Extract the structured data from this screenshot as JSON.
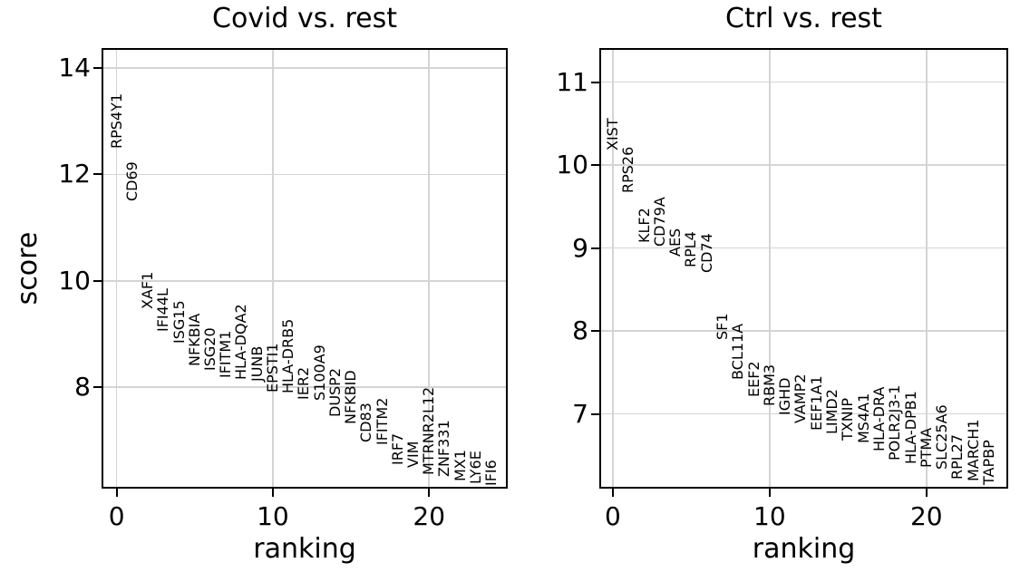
{
  "colors": {
    "background": "#ffffff",
    "text": "#000000",
    "axis_spine": "#000000",
    "grid": "#d4d4d4"
  },
  "chart_data": [
    {
      "type": "scatter",
      "point_style": "gene names drawn as vertical text labels at (ranking, score)",
      "title": "Covid vs. rest",
      "xlabel": "ranking",
      "ylabel": "score",
      "xlim": [
        -0.85,
        24.92
      ],
      "ylim": [
        6.13,
        14.34
      ],
      "xticks": [
        0,
        10,
        20
      ],
      "yticks": [
        8,
        10,
        12,
        14
      ],
      "grid": true,
      "points": [
        {
          "ranking": 0,
          "gene": "RPS4Y1",
          "score": 12.49
        },
        {
          "ranking": 1,
          "gene": "CD69",
          "score": 11.5
        },
        {
          "ranking": 2,
          "gene": "XAF1",
          "score": 9.46
        },
        {
          "ranking": 3,
          "gene": "IFI44L",
          "score": 9.05
        },
        {
          "ranking": 4,
          "gene": "ISG15",
          "score": 8.82
        },
        {
          "ranking": 5,
          "gene": "NFKBIA",
          "score": 8.4
        },
        {
          "ranking": 6,
          "gene": "ISG20",
          "score": 8.31
        },
        {
          "ranking": 7,
          "gene": "IFITM1",
          "score": 8.17
        },
        {
          "ranking": 8,
          "gene": "HLA-DQA2",
          "score": 8.14
        },
        {
          "ranking": 9,
          "gene": "JUNB",
          "score": 8.11
        },
        {
          "ranking": 10,
          "gene": "EPSTI1",
          "score": 7.9
        },
        {
          "ranking": 11,
          "gene": "HLA-DRB5",
          "score": 7.88
        },
        {
          "ranking": 12,
          "gene": "IER2",
          "score": 7.76
        },
        {
          "ranking": 13,
          "gene": "S100A9",
          "score": 7.74
        },
        {
          "ranking": 14,
          "gene": "DUSP2",
          "score": 7.44
        },
        {
          "ranking": 15,
          "gene": "NFKBID",
          "score": 7.3
        },
        {
          "ranking": 16,
          "gene": "CD83",
          "score": 6.96
        },
        {
          "ranking": 17,
          "gene": "IFITM2",
          "score": 6.91
        },
        {
          "ranking": 18,
          "gene": "IRF7",
          "score": 6.54
        },
        {
          "ranking": 19,
          "gene": "VIM",
          "score": 6.48
        },
        {
          "ranking": 20,
          "gene": "MTRNR2L12",
          "score": 6.35
        },
        {
          "ranking": 21,
          "gene": "ZNF331",
          "score": 6.31
        },
        {
          "ranking": 22,
          "gene": "MX1",
          "score": 6.23
        },
        {
          "ranking": 23,
          "gene": "LY6E",
          "score": 6.18
        },
        {
          "ranking": 24,
          "gene": "IFI6",
          "score": 6.14
        }
      ]
    },
    {
      "type": "scatter",
      "point_style": "gene names drawn as vertical text labels at (ranking, score)",
      "title": "Ctrl vs. rest",
      "xlabel": "ranking",
      "ylabel": "",
      "xlim": [
        -0.75,
        25.1
      ],
      "ylim": [
        6.12,
        11.39
      ],
      "xticks": [
        0,
        10,
        20
      ],
      "yticks": [
        7,
        8,
        9,
        10,
        11
      ],
      "grid": true,
      "points": [
        {
          "ranking": 0,
          "gene": "XIST",
          "score": 10.18
        },
        {
          "ranking": 1,
          "gene": "RPS26",
          "score": 9.66
        },
        {
          "ranking": 2,
          "gene": "KLF2",
          "score": 9.06
        },
        {
          "ranking": 3,
          "gene": "CD79A",
          "score": 9.02
        },
        {
          "ranking": 4,
          "gene": "AES",
          "score": 8.9
        },
        {
          "ranking": 5,
          "gene": "RPL4",
          "score": 8.77
        },
        {
          "ranking": 6,
          "gene": "CD74",
          "score": 8.7
        },
        {
          "ranking": 7,
          "gene": "SF1",
          "score": 7.89
        },
        {
          "ranking": 8,
          "gene": "BCL11A",
          "score": 7.41
        },
        {
          "ranking": 9,
          "gene": "EEF2",
          "score": 7.2
        },
        {
          "ranking": 10,
          "gene": "RBM3",
          "score": 7.09
        },
        {
          "ranking": 11,
          "gene": "IGHD",
          "score": 6.98
        },
        {
          "ranking": 12,
          "gene": "VAMP2",
          "score": 6.89
        },
        {
          "ranking": 13,
          "gene": "EEF1A1",
          "score": 6.8
        },
        {
          "ranking": 14,
          "gene": "LIMD2",
          "score": 6.75
        },
        {
          "ranking": 15,
          "gene": "TXNIP",
          "score": 6.68
        },
        {
          "ranking": 16,
          "gene": "MS4A1",
          "score": 6.64
        },
        {
          "ranking": 17,
          "gene": "HLA-DRA",
          "score": 6.55
        },
        {
          "ranking": 18,
          "gene": "POLR2J3-1",
          "score": 6.44
        },
        {
          "ranking": 19,
          "gene": "HLA-DPB1",
          "score": 6.39
        },
        {
          "ranking": 20,
          "gene": "PTMA",
          "score": 6.35
        },
        {
          "ranking": 21,
          "gene": "SLC25A6",
          "score": 6.33
        },
        {
          "ranking": 22,
          "gene": "RPL27",
          "score": 6.21
        },
        {
          "ranking": 23,
          "gene": "MARCH1",
          "score": 6.19
        },
        {
          "ranking": 24,
          "gene": "TAPBP",
          "score": 6.14
        }
      ]
    }
  ]
}
